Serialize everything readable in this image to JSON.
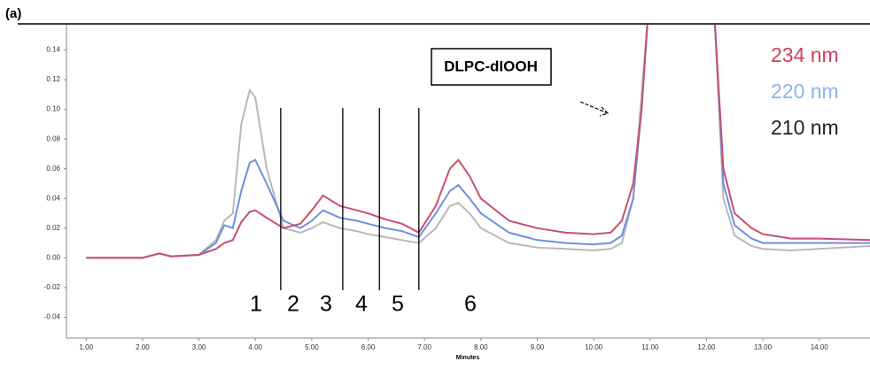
{
  "chart_data": {
    "type": "line",
    "panel_label": "(a)",
    "annotation": "DLPC-dIOOH",
    "x_label": "Minutes",
    "x": [
      1.0,
      2.0,
      2.3,
      2.5,
      3.0,
      3.3,
      3.45,
      3.6,
      3.75,
      3.9,
      4.0,
      4.2,
      4.5,
      4.8,
      5.0,
      5.2,
      5.5,
      5.8,
      6.0,
      6.3,
      6.6,
      6.9,
      7.2,
      7.45,
      7.6,
      7.8,
      8.0,
      8.5,
      9.0,
      9.5,
      10.0,
      10.3,
      10.5,
      10.7,
      10.85,
      10.95,
      11.5,
      12.15,
      12.3,
      12.5,
      12.8,
      13.0,
      13.5,
      14.0,
      14.9
    ],
    "series": [
      {
        "name": "234 nm",
        "color": "#c8506a",
        "values": [
          0.0,
          0.0,
          0.003,
          0.001,
          0.002,
          0.006,
          0.01,
          0.012,
          0.024,
          0.031,
          0.032,
          0.027,
          0.02,
          0.023,
          0.032,
          0.042,
          0.035,
          0.032,
          0.03,
          0.026,
          0.023,
          0.017,
          0.035,
          0.06,
          0.066,
          0.055,
          0.04,
          0.025,
          0.02,
          0.017,
          0.016,
          0.017,
          0.025,
          0.05,
          0.1,
          0.157,
          null,
          0.157,
          0.06,
          0.03,
          0.02,
          0.016,
          0.013,
          0.013,
          0.012
        ]
      },
      {
        "name": "220 nm",
        "color": "#6f8fe0",
        "values": [
          0.0,
          0.0,
          0.003,
          0.001,
          0.002,
          0.01,
          0.022,
          0.02,
          0.045,
          0.064,
          0.066,
          0.05,
          0.025,
          0.02,
          0.025,
          0.032,
          0.027,
          0.025,
          0.023,
          0.02,
          0.018,
          0.014,
          0.03,
          0.045,
          0.049,
          0.04,
          0.03,
          0.017,
          0.012,
          0.01,
          0.009,
          0.01,
          0.015,
          0.04,
          0.1,
          0.157,
          null,
          0.157,
          0.05,
          0.022,
          0.013,
          0.01,
          0.01,
          0.01,
          0.01
        ]
      },
      {
        "name": "210 nm",
        "color": "#b8b8b8",
        "values": [
          0.0,
          0.0,
          0.003,
          0.001,
          0.002,
          0.012,
          0.025,
          0.03,
          0.09,
          0.113,
          0.108,
          0.06,
          0.02,
          0.017,
          0.02,
          0.024,
          0.02,
          0.018,
          0.016,
          0.014,
          0.012,
          0.01,
          0.02,
          0.035,
          0.037,
          0.03,
          0.02,
          0.01,
          0.007,
          0.006,
          0.005,
          0.006,
          0.01,
          0.04,
          0.11,
          0.157,
          null,
          0.157,
          0.04,
          0.015,
          0.008,
          0.006,
          0.005,
          0.006,
          0.008
        ]
      }
    ],
    "legend_colors": [
      "#d0405a",
      "#8ab4f0",
      "#222222"
    ],
    "dividers": [
      4.45,
      5.55,
      6.2,
      6.9
    ],
    "regions": [
      "1",
      "2",
      "3",
      "4",
      "5",
      "6"
    ],
    "xlim": [
      0.65,
      14.9
    ],
    "ylim": [
      -0.054,
      0.157
    ],
    "xticks": [
      {
        "value": 1,
        "label": "1.00"
      },
      {
        "value": 2,
        "label": "2.00"
      },
      {
        "value": 3,
        "label": "3.00"
      },
      {
        "value": 4,
        "label": "4.00"
      },
      {
        "value": 5,
        "label": "5.00"
      },
      {
        "value": 6,
        "label": "6.00"
      },
      {
        "value": 7,
        "label": "7.00"
      },
      {
        "value": 8,
        "label": "8.00"
      },
      {
        "value": 9,
        "label": "9.00"
      },
      {
        "value": 10,
        "label": "10.00"
      },
      {
        "value": 11,
        "label": "11.00"
      },
      {
        "value": 12,
        "label": "12.00"
      },
      {
        "value": 13,
        "label": "13.00"
      },
      {
        "value": 14,
        "label": "14.00"
      }
    ],
    "yticks": [
      0.14,
      0.12,
      {
        "value": 0.1,
        "label": "0.10"
      },
      0.08,
      0.06,
      0.04,
      0.02,
      {
        "value": 0,
        "label": "0.00"
      },
      -0.02,
      -0.04
    ],
    "grid": false
  }
}
